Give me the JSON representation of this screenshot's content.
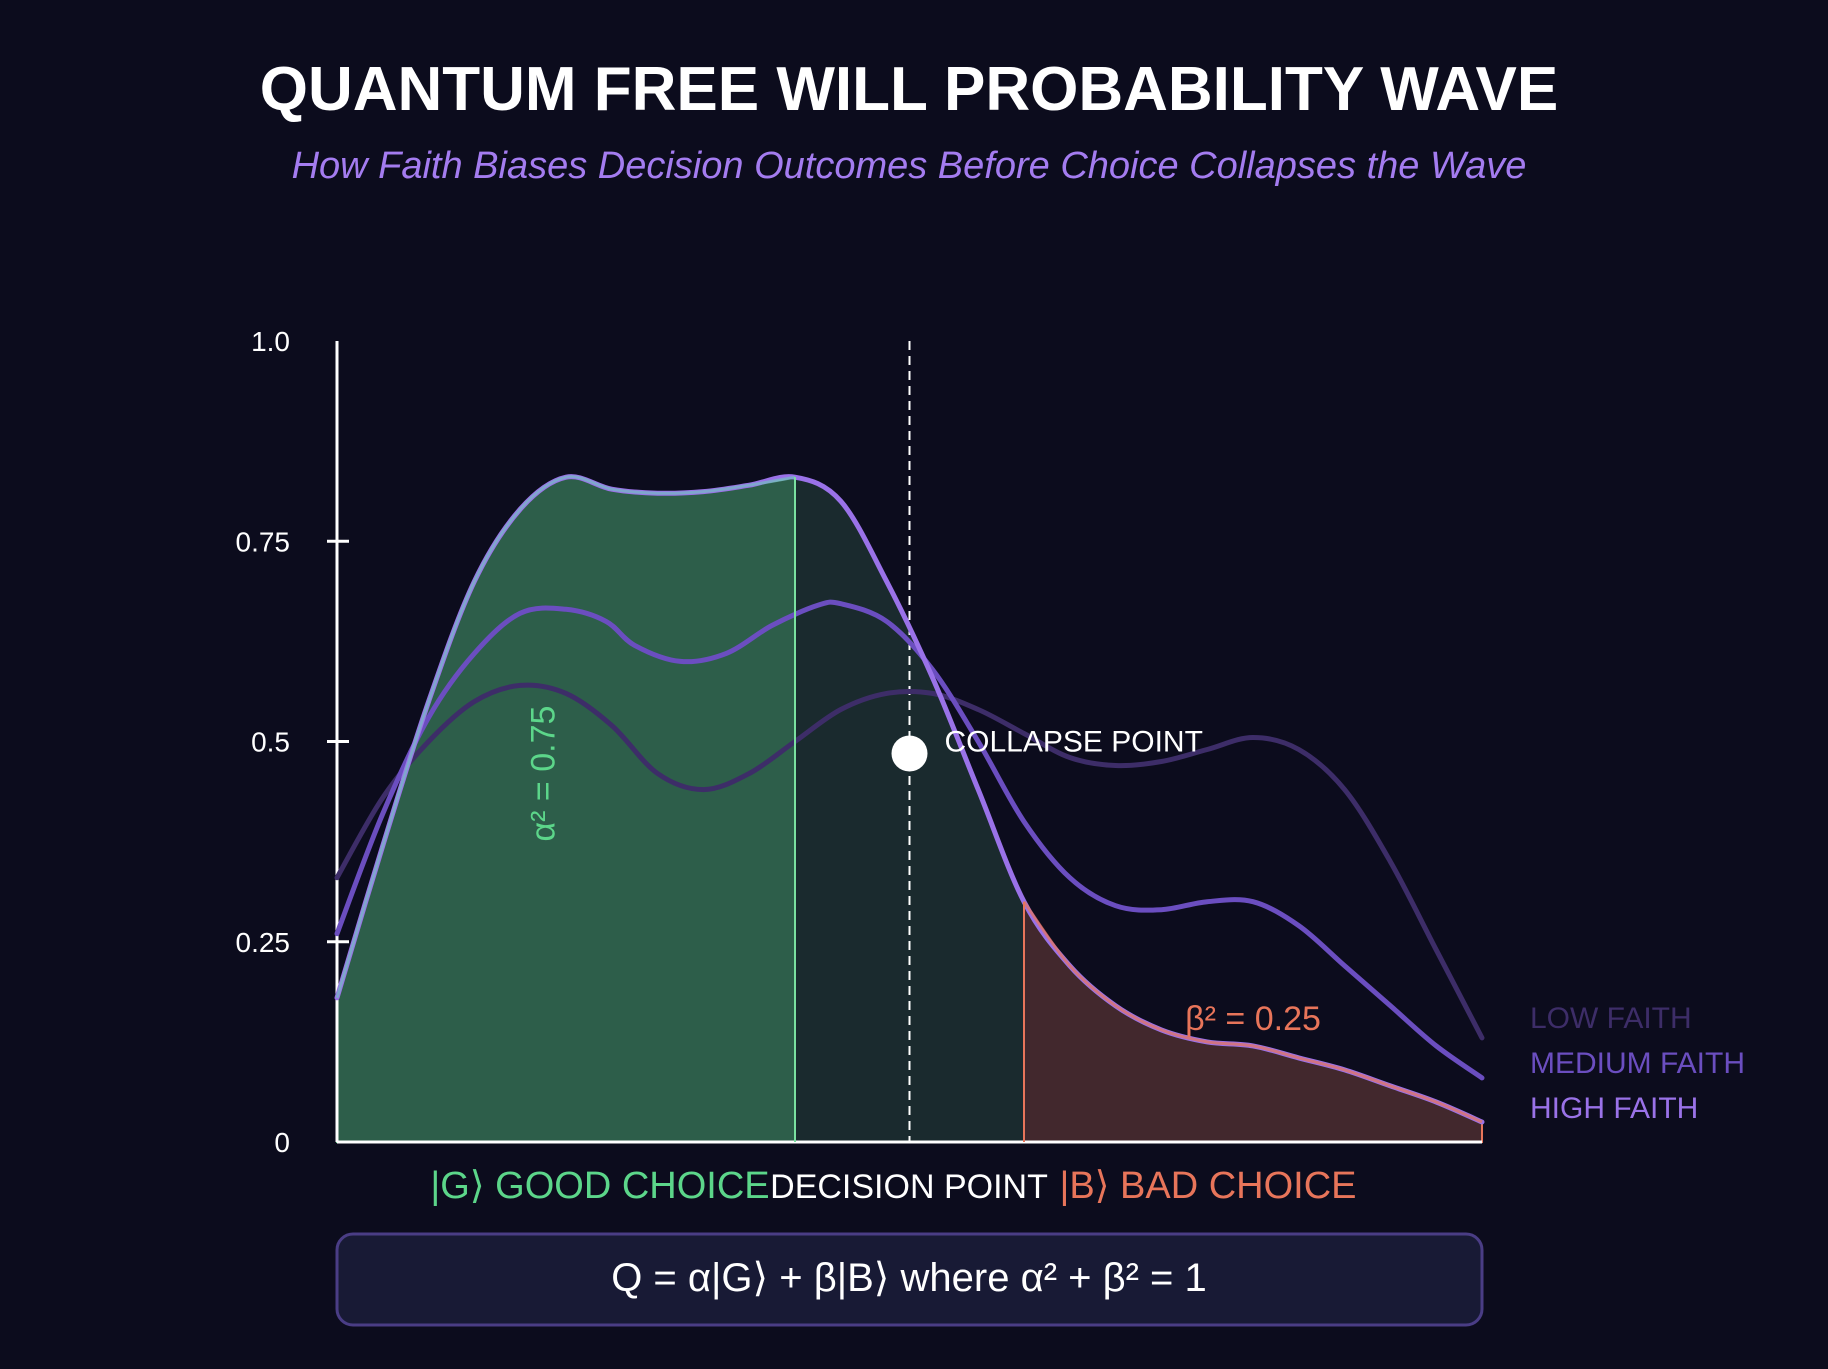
{
  "chart_data": {
    "type": "area",
    "title": "QUANTUM FREE WILL PROBABILITY WAVE",
    "subtitle": "How Faith Biases Decision Outcomes Before Choice Collapses the Wave",
    "xlim": [
      0,
      1
    ],
    "ylim": [
      0,
      1
    ],
    "y_ticks": [
      {
        "value": 0,
        "label": "0"
      },
      {
        "value": 0.25,
        "label": "0.25"
      },
      {
        "value": 0.5,
        "label": "0.5"
      },
      {
        "value": 0.75,
        "label": "0.75"
      },
      {
        "value": 1.0,
        "label": "1.0"
      }
    ],
    "x_labels": {
      "good": "|G⟩ GOOD CHOICE",
      "decision": "DECISION POINT",
      "bad": "|B⟩ BAD CHOICE"
    },
    "decision_x": 0.5,
    "good_region_end": 0.4,
    "bad_region_start": 0.6,
    "series": [
      {
        "name": "LOW FAITH",
        "color": "#3d2d68",
        "x": [
          0,
          0.04,
          0.08,
          0.12,
          0.16,
          0.2,
          0.24,
          0.28,
          0.32,
          0.36,
          0.4,
          0.44,
          0.48,
          0.52,
          0.56,
          0.6,
          0.64,
          0.68,
          0.72,
          0.76,
          0.8,
          0.84,
          0.88,
          0.92,
          0.96,
          1.0
        ],
        "y": [
          0.33,
          0.43,
          0.5,
          0.55,
          0.57,
          0.56,
          0.52,
          0.46,
          0.44,
          0.46,
          0.5,
          0.54,
          0.56,
          0.56,
          0.54,
          0.51,
          0.48,
          0.47,
          0.475,
          0.49,
          0.505,
          0.49,
          0.44,
          0.35,
          0.24,
          0.13
        ]
      },
      {
        "name": "MEDIUM FAITH",
        "color": "#6b4ec0",
        "x": [
          0,
          0.04,
          0.08,
          0.12,
          0.16,
          0.2,
          0.235,
          0.26,
          0.3,
          0.34,
          0.38,
          0.42,
          0.44,
          0.48,
          0.52,
          0.56,
          0.6,
          0.64,
          0.68,
          0.72,
          0.76,
          0.8,
          0.84,
          0.88,
          0.92,
          0.96,
          1.0
        ],
        "y": [
          0.26,
          0.41,
          0.53,
          0.61,
          0.66,
          0.665,
          0.65,
          0.62,
          0.6,
          0.61,
          0.645,
          0.67,
          0.672,
          0.65,
          0.59,
          0.5,
          0.4,
          0.33,
          0.295,
          0.29,
          0.3,
          0.3,
          0.27,
          0.22,
          0.17,
          0.12,
          0.08
        ]
      },
      {
        "name": "HIGH FAITH",
        "color": "#9a72e8",
        "x": [
          0,
          0.04,
          0.08,
          0.12,
          0.16,
          0.2,
          0.24,
          0.28,
          0.32,
          0.36,
          0.4,
          0.44,
          0.48,
          0.52,
          0.56,
          0.6,
          0.64,
          0.68,
          0.72,
          0.76,
          0.8,
          0.84,
          0.88,
          0.92,
          0.96,
          1.0
        ],
        "y": [
          0.18,
          0.37,
          0.55,
          0.7,
          0.79,
          0.83,
          0.815,
          0.81,
          0.812,
          0.82,
          0.83,
          0.8,
          0.7,
          0.58,
          0.44,
          0.3,
          0.22,
          0.17,
          0.14,
          0.125,
          0.12,
          0.105,
          0.09,
          0.07,
          0.05,
          0.025
        ]
      }
    ],
    "good_fill_color": "#2d5e4a",
    "good_edge_color": "#7ae0a0",
    "mid_fill_color": "#1a2a2e",
    "bad_fill_color": "#42282d",
    "bad_edge_color": "#e8755a",
    "annotations": {
      "alpha": {
        "text": "α² = 0.75",
        "x": 0.19,
        "y": 0.46,
        "color": "#5cd68a"
      },
      "beta": {
        "text": "β² = 0.25",
        "x": 0.8,
        "y": 0.14,
        "color": "#e8755a"
      },
      "collapse": {
        "text": "COLLAPSE POINT",
        "x": 0.5,
        "y": 0.485,
        "color": "#ffffff"
      }
    },
    "legend_placement": "right"
  },
  "equation": "Q = α|G⟩ + β|B⟩ where α² + β² = 1"
}
